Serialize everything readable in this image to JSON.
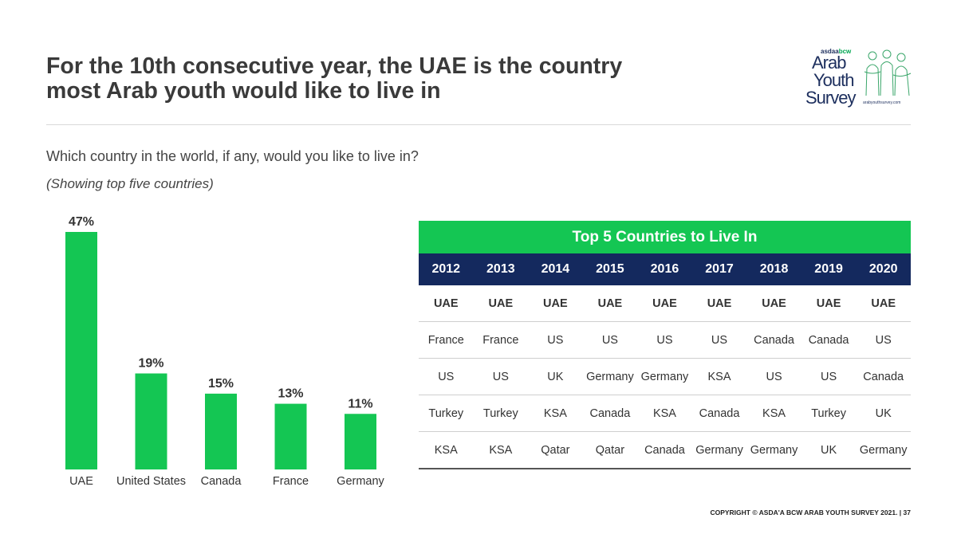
{
  "header": {
    "title_line1": "For the 10th consecutive year, the UAE is the country",
    "title_line2": "most Arab youth would like to live in"
  },
  "logo": {
    "brand_prefix": "asdaa",
    "brand_suffix": "bcw",
    "line1": "Arab",
    "line2": "Youth",
    "line3": "Survey",
    "url": "arabyouthsurvey.com"
  },
  "question": "Which country in the world, if any, would you like to live in?",
  "subnote": "(Showing top five countries)",
  "chart_data": {
    "type": "bar",
    "categories": [
      "UAE",
      "United States",
      "Canada",
      "France",
      "Germany"
    ],
    "values": [
      47,
      19,
      15,
      13,
      11
    ],
    "value_labels": [
      "47%",
      "19%",
      "15%",
      "13%",
      "11%"
    ],
    "unit": "%",
    "title": "",
    "xlabel": "",
    "ylabel": "",
    "ylim": [
      0,
      47
    ],
    "bar_color": "#14c653",
    "grid": false
  },
  "table": {
    "title": "Top 5 Countries to Live In",
    "years": [
      "2012",
      "2013",
      "2014",
      "2015",
      "2016",
      "2017",
      "2018",
      "2019",
      "2020"
    ],
    "rows": [
      [
        "UAE",
        "UAE",
        "UAE",
        "UAE",
        "UAE",
        "UAE",
        "UAE",
        "UAE",
        "UAE"
      ],
      [
        "France",
        "France",
        "US",
        "US",
        "US",
        "US",
        "Canada",
        "Canada",
        "US"
      ],
      [
        "US",
        "US",
        "UK",
        "Germany",
        "Germany",
        "KSA",
        "US",
        "US",
        "Canada"
      ],
      [
        "Turkey",
        "Turkey",
        "KSA",
        "Canada",
        "KSA",
        "Canada",
        "KSA",
        "Turkey",
        "UK"
      ],
      [
        "KSA",
        "KSA",
        "Qatar",
        "Qatar",
        "Canada",
        "Germany",
        "Germany",
        "UK",
        "Germany"
      ]
    ],
    "header_color": "#14295e",
    "title_color": "#14c653"
  },
  "footer": {
    "copyright": "COPYRIGHT © ASDA'A BCW ARAB YOUTH SURVEY 2021. | 37"
  }
}
